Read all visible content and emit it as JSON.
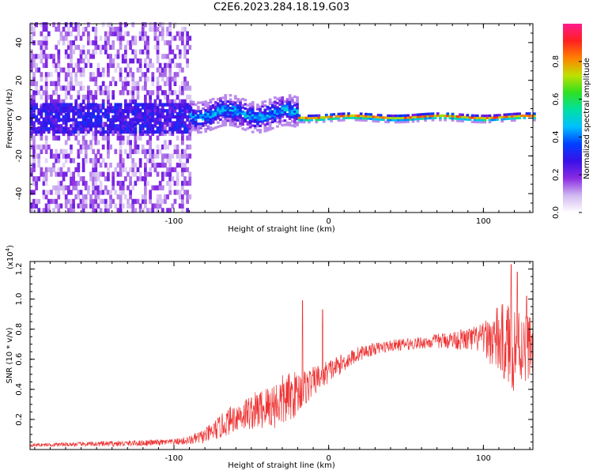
{
  "title": "C2E6.2023.284.18.19.G03",
  "chart_data": [
    {
      "type": "heatmap",
      "xlabel": "Height of straight line (km)",
      "ylabel": "Frequency (Hz)",
      "xlim": [
        -193,
        132
      ],
      "ylim": [
        -50,
        50
      ],
      "x_ticks": [
        -100,
        0,
        100
      ],
      "x_tick_labels": [
        "-100",
        "0",
        "100"
      ],
      "y_ticks": [
        -40,
        -20,
        0,
        20,
        40
      ],
      "y_tick_labels": [
        "-40",
        "-20",
        "0",
        "20",
        "40"
      ],
      "colorbar": {
        "label": "Normalized spectral amplitude",
        "range": [
          0.0,
          1.0
        ],
        "ticks": [
          0.0,
          0.2,
          0.4,
          0.6,
          0.8
        ],
        "tick_labels": [
          "0.0",
          "0.2",
          "0.4",
          "0.6",
          "0.8"
        ],
        "colormap": [
          "#ffffff",
          "#d0b8f0",
          "#8a2be2",
          "#3a10e8",
          "#0040ff",
          "#00c0ff",
          "#00e0a0",
          "#30e020",
          "#c0e000",
          "#ff8000",
          "#ff2020",
          "#ff1a8c"
        ]
      },
      "regions": [
        {
          "name": "noise",
          "x_range": [
            -193,
            -90
          ],
          "freq_spread": 50,
          "amplitude": 0.15
        },
        {
          "name": "transition",
          "x_range": [
            -90,
            -20
          ],
          "freq_center": 2,
          "freq_spread": 8,
          "amplitude": 0.45
        },
        {
          "name": "stable-line",
          "x_range": [
            -20,
            132
          ],
          "freq_center": 0,
          "freq_spread": 2,
          "amplitude": 0.9
        }
      ]
    },
    {
      "type": "line",
      "xlabel": "Height of straight line (km)",
      "ylabel": "SNR (10 * v/v)",
      "y_multiplier": "(x10",
      "y_multiplier_exp": "4",
      "y_multiplier_close": ")",
      "xlim": [
        -193,
        132
      ],
      "ylim": [
        0,
        1.25
      ],
      "x_ticks": [
        -100,
        0,
        100
      ],
      "x_tick_labels": [
        "-100",
        "0",
        "100"
      ],
      "y_ticks": [
        0.2,
        0.4,
        0.6,
        0.8,
        1.0,
        1.2
      ],
      "y_tick_labels": [
        "0.2",
        "0.4",
        "0.6",
        "0.8",
        "1.0",
        "1.2"
      ],
      "color": "#ee3333",
      "x": [
        -193,
        -160,
        -130,
        -100,
        -90,
        -80,
        -70,
        -60,
        -50,
        -40,
        -30,
        -20,
        -10,
        0,
        10,
        20,
        30,
        40,
        50,
        60,
        70,
        80,
        90,
        100,
        110,
        120,
        132
      ],
      "y": [
        0.03,
        0.035,
        0.04,
        0.05,
        0.06,
        0.09,
        0.15,
        0.22,
        0.25,
        0.28,
        0.32,
        0.38,
        0.45,
        0.52,
        0.58,
        0.64,
        0.67,
        0.69,
        0.7,
        0.71,
        0.72,
        0.73,
        0.73,
        0.74,
        0.72,
        0.68,
        0.7
      ],
      "spread": [
        0.01,
        0.015,
        0.02,
        0.02,
        0.03,
        0.05,
        0.08,
        0.1,
        0.12,
        0.15,
        0.18,
        0.15,
        0.1,
        0.08,
        0.06,
        0.05,
        0.04,
        0.04,
        0.04,
        0.04,
        0.05,
        0.06,
        0.08,
        0.1,
        0.25,
        0.3,
        0.2
      ],
      "peaks": [
        {
          "x": -17,
          "y": 0.99
        },
        {
          "x": -4,
          "y": 0.93
        },
        {
          "x": 118,
          "y": 1.23
        },
        {
          "x": 122,
          "y": 1.18
        },
        {
          "x": 128,
          "y": 1.02
        }
      ]
    }
  ]
}
